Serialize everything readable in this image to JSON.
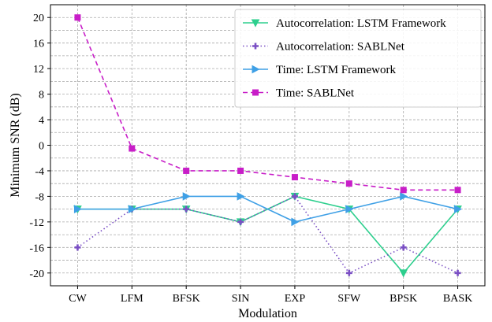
{
  "chart_data": {
    "type": "line",
    "title": "",
    "xlabel": "Modulation",
    "ylabel": "Minimum SNR (dB)",
    "categories": [
      "CW",
      "LFM",
      "BFSK",
      "SIN",
      "EXP",
      "SFW",
      "BPSK",
      "BASK"
    ],
    "ylim": [
      -22,
      22
    ],
    "yticks": [
      "20",
      "16",
      "12",
      "8",
      "4",
      "0",
      "-4",
      "-8",
      "-12",
      "-16",
      "-20"
    ],
    "grid": true,
    "legend_position": "top-right",
    "series": [
      {
        "name": "Autocorrelation: LSTM Framework",
        "values": [
          -10,
          -10,
          -10,
          -12,
          -8,
          -10,
          -20,
          -10
        ],
        "color": "#2ecf8e",
        "line_style": "solid",
        "marker": "triangle-down"
      },
      {
        "name": "Autocorrelation: SABLNet",
        "values": [
          -16,
          -10,
          -10,
          -12,
          -8,
          -20,
          -16,
          -20
        ],
        "color": "#7a4fc4",
        "line_style": "dotted",
        "marker": "plus"
      },
      {
        "name": "Time: LSTM Framework",
        "values": [
          -10,
          -10,
          -8,
          -8,
          -12,
          -10,
          -8,
          -10
        ],
        "color": "#3fa0e6",
        "line_style": "solid",
        "marker": "triangle-right"
      },
      {
        "name": "Time: SABLNet",
        "values": [
          20,
          -0.5,
          -4,
          -4,
          -5,
          -6,
          -7,
          -7
        ],
        "color": "#c81ec8",
        "line_style": "dashed",
        "marker": "square"
      }
    ]
  }
}
